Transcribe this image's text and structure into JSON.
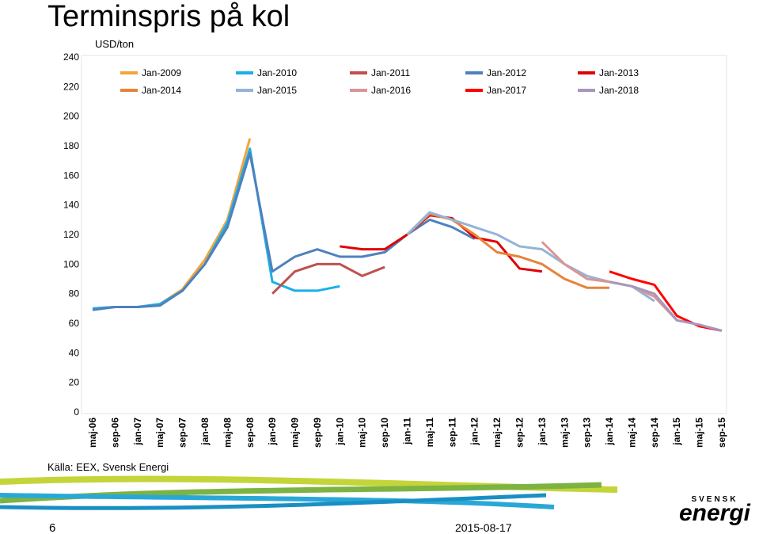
{
  "chart_data": {
    "type": "line",
    "title": "Terminspris på kol",
    "y_label": "USD/ton",
    "categories": [
      "maj-06",
      "sep-06",
      "jan-07",
      "maj-07",
      "sep-07",
      "jan-08",
      "maj-08",
      "sep-08",
      "jan-09",
      "maj-09",
      "sep-09",
      "jan-10",
      "maj-10",
      "sep-10",
      "jan-11",
      "maj-11",
      "sep-11",
      "jan-12",
      "maj-12",
      "sep-12",
      "jan-13",
      "maj-13",
      "sep-13",
      "jan-14",
      "maj-14",
      "sep-14",
      "jan-15",
      "maj-15",
      "sep-15"
    ],
    "ylim": [
      0,
      240
    ],
    "yticks": [
      0,
      20,
      40,
      60,
      80,
      100,
      120,
      140,
      160,
      180,
      200,
      220,
      240
    ],
    "grid": false,
    "series": [
      {
        "name": "Jan-2009",
        "color": "#f4a43a",
        "values": [
          70,
          71,
          71,
          73,
          83,
          103,
          130,
          185,
          null,
          null,
          null,
          null,
          null,
          null,
          null,
          null,
          null,
          null,
          null,
          null,
          null,
          null,
          null,
          null,
          null,
          null,
          null,
          null,
          null
        ]
      },
      {
        "name": "Jan-2010",
        "color": "#1ab0e8",
        "values": [
          70,
          71,
          71,
          73,
          82,
          100,
          128,
          178,
          88,
          82,
          82,
          85,
          null,
          null,
          null,
          null,
          null,
          null,
          null,
          null,
          null,
          null,
          null,
          null,
          null,
          null,
          null,
          null,
          null
        ]
      },
      {
        "name": "Jan-2011",
        "color": "#c0504d",
        "values": [
          null,
          null,
          null,
          null,
          null,
          null,
          null,
          null,
          80,
          95,
          100,
          100,
          92,
          98,
          null,
          null,
          null,
          null,
          null,
          null,
          null,
          null,
          null,
          null,
          null,
          null,
          null,
          null,
          null
        ]
      },
      {
        "name": "Jan-2012",
        "color": "#4f81bd",
        "values": [
          69,
          71,
          71,
          72,
          82,
          100,
          125,
          175,
          95,
          105,
          110,
          105,
          105,
          108,
          120,
          130,
          125,
          117,
          null,
          null,
          null,
          null,
          null,
          null,
          null,
          null,
          null,
          null,
          null
        ]
      },
      {
        "name": "Jan-2013",
        "color": "#e00000",
        "values": [
          null,
          null,
          null,
          null,
          null,
          null,
          null,
          null,
          null,
          null,
          null,
          112,
          110,
          110,
          120,
          133,
          131,
          118,
          115,
          97,
          95,
          null,
          null,
          null,
          null,
          null,
          null,
          null,
          null
        ]
      },
      {
        "name": "Jan-2014",
        "color": "#e8823a",
        "values": [
          null,
          null,
          null,
          null,
          null,
          null,
          null,
          null,
          null,
          null,
          null,
          null,
          null,
          null,
          120,
          134,
          130,
          120,
          108,
          105,
          100,
          90,
          84,
          84,
          null,
          null,
          null,
          null,
          null
        ]
      },
      {
        "name": "Jan-2015",
        "color": "#95b3d7",
        "values": [
          null,
          null,
          null,
          null,
          null,
          null,
          null,
          null,
          null,
          null,
          null,
          null,
          null,
          null,
          120,
          135,
          130,
          125,
          120,
          112,
          110,
          100,
          92,
          88,
          85,
          75,
          null,
          null,
          null
        ]
      },
      {
        "name": "Jan-2016",
        "color": "#d99694",
        "values": [
          null,
          null,
          null,
          null,
          null,
          null,
          null,
          null,
          null,
          null,
          null,
          null,
          null,
          null,
          null,
          null,
          null,
          null,
          null,
          null,
          115,
          100,
          90,
          88,
          85,
          78,
          62,
          null,
          null
        ]
      },
      {
        "name": "Jan-2017",
        "color": "#ff0000",
        "values": [
          null,
          null,
          null,
          null,
          null,
          null,
          null,
          null,
          null,
          null,
          null,
          null,
          null,
          null,
          null,
          null,
          null,
          null,
          null,
          null,
          null,
          null,
          null,
          95,
          90,
          86,
          65,
          58,
          55
        ]
      },
      {
        "name": "Jan-2018",
        "color": "#a797bb",
        "values": [
          null,
          null,
          null,
          null,
          null,
          null,
          null,
          null,
          null,
          null,
          null,
          null,
          null,
          null,
          null,
          null,
          null,
          null,
          null,
          null,
          null,
          null,
          null,
          88,
          85,
          80,
          62,
          59,
          55
        ]
      }
    ]
  },
  "slide": {
    "source": "Källa: EEX, Svensk Energi",
    "number": "6",
    "date": "2015-08-17",
    "logo_top": "SVENSK",
    "logo_bottom": "energi"
  }
}
